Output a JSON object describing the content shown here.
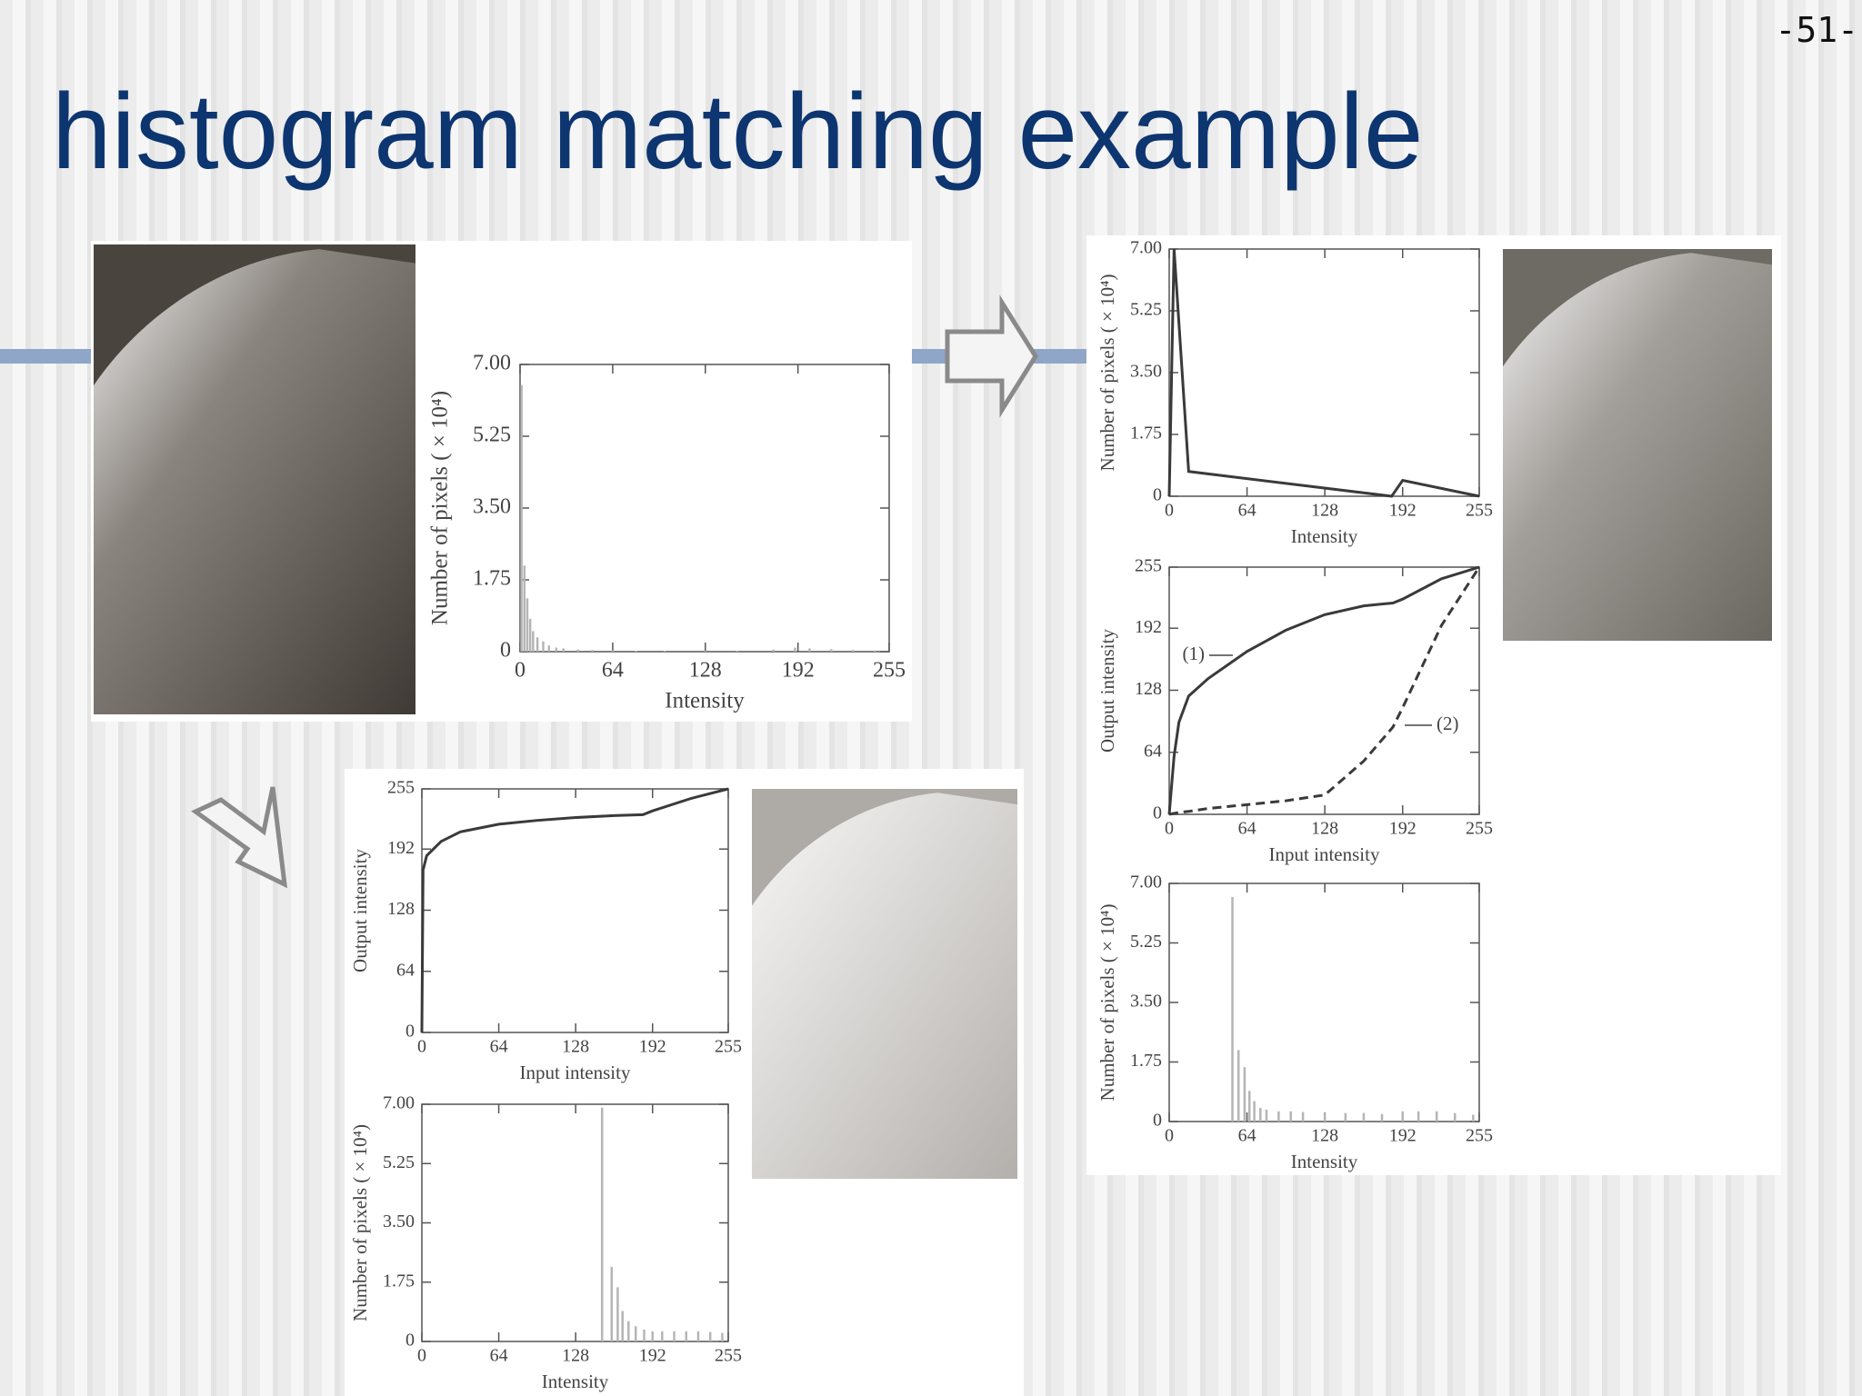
{
  "title": "histogram matching example",
  "page_number": "-51-",
  "chart_data": [
    {
      "type": "bar",
      "x_label": "Intensity",
      "y_label": "Number of pixels ( × 10⁴)",
      "color": "#b5b5b5",
      "x": [
        1,
        3,
        5,
        7,
        9,
        12,
        16,
        20,
        25,
        30,
        40,
        50,
        64,
        80,
        100,
        128,
        150,
        175,
        190,
        200,
        215,
        230,
        245
      ],
      "values": [
        6.5,
        2.1,
        1.3,
        0.8,
        0.5,
        0.35,
        0.25,
        0.15,
        0.1,
        0.08,
        0.05,
        0.04,
        0.03,
        0.02,
        0.02,
        0.02,
        0.02,
        0.05,
        0.1,
        0.08,
        0.06,
        0.04,
        0.03
      ],
      "xlim": [
        0,
        255
      ],
      "xticks": [
        0,
        64,
        128,
        192,
        255
      ],
      "ylim": [
        0,
        7
      ],
      "yticks": [
        0,
        {
          "value": 1.75,
          "label": "1.75"
        },
        {
          "value": 3.5,
          "label": "3.50"
        },
        {
          "value": 5.25,
          "label": "5.25"
        },
        {
          "value": 7,
          "label": "7.00"
        }
      ]
    },
    {
      "type": "line",
      "x_label": "Intensity",
      "y_label": "Number of pixels ( × 10⁴)",
      "color": "#3a3a3a",
      "x": [
        0,
        4,
        16,
        183,
        192,
        255
      ],
      "values": [
        0,
        7,
        0.7,
        0,
        0.45,
        0
      ],
      "xlim": [
        0,
        255
      ],
      "xticks": [
        0,
        64,
        128,
        192,
        255
      ],
      "ylim": [
        0,
        7
      ],
      "yticks": [
        0,
        {
          "value": 1.75,
          "label": "1.75"
        },
        {
          "value": 3.5,
          "label": "3.50"
        },
        {
          "value": 5.25,
          "label": "5.25"
        },
        {
          "value": 7,
          "label": "7.00"
        }
      ]
    },
    {
      "type": "line",
      "x_label": "Input intensity",
      "y_label": "Output intensity",
      "x": [
        0,
        4,
        8,
        16,
        32,
        64,
        96,
        128,
        160,
        184,
        192,
        224,
        255
      ],
      "series": [
        {
          "name": "(1)",
          "color": "#3a3a3a",
          "style": "solid",
          "values": [
            0,
            60,
            95,
            122,
            140,
            168,
            190,
            206,
            215,
            218,
            222,
            243,
            255
          ]
        },
        {
          "name": "(2)",
          "color": "#3a3a3a",
          "style": "dashed",
          "values": [
            0,
            1,
            2,
            3,
            6,
            10,
            14,
            20,
            55,
            90,
            110,
            195,
            255
          ]
        }
      ],
      "xlim": [
        0,
        255
      ],
      "xticks": [
        0,
        64,
        128,
        192,
        255
      ],
      "ylim": [
        0,
        255
      ],
      "yticks": [
        0,
        64,
        128,
        192,
        255
      ]
    },
    {
      "type": "bar",
      "x_label": "Intensity",
      "y_label": "Number of pixels ( × 10⁴)",
      "color": "#b5b5b5",
      "x": [
        52,
        57,
        62,
        66,
        70,
        75,
        80,
        90,
        100,
        110,
        128,
        145,
        160,
        175,
        192,
        205,
        220,
        235,
        250
      ],
      "values": [
        6.6,
        2.1,
        1.6,
        0.9,
        0.6,
        0.4,
        0.35,
        0.3,
        0.3,
        0.28,
        0.25,
        0.25,
        0.25,
        0.22,
        0.3,
        0.3,
        0.3,
        0.25,
        0.2
      ],
      "xlim": [
        0,
        255
      ],
      "xticks": [
        0,
        64,
        128,
        192,
        255
      ],
      "ylim": [
        0,
        7
      ],
      "yticks": [
        0,
        {
          "value": 1.75,
          "label": "1.75"
        },
        {
          "value": 3.5,
          "label": "3.50"
        },
        {
          "value": 5.25,
          "label": "5.25"
        },
        {
          "value": 7,
          "label": "7.00"
        }
      ]
    },
    {
      "type": "line",
      "x_label": "Input intensity",
      "y_label": "Output intensity",
      "color": "#3a3a3a",
      "x": [
        0,
        1,
        4,
        16,
        32,
        64,
        96,
        128,
        160,
        184,
        192,
        224,
        255
      ],
      "values": [
        0,
        170,
        185,
        200,
        210,
        218,
        222,
        225,
        227,
        228,
        232,
        245,
        255
      ],
      "xlim": [
        0,
        255
      ],
      "xticks": [
        0,
        64,
        128,
        192,
        255
      ],
      "ylim": [
        0,
        255
      ],
      "yticks": [
        0,
        64,
        128,
        192,
        255
      ]
    },
    {
      "type": "bar",
      "x_label": "Intensity",
      "y_label": "Number of pixels ( × 10⁴)",
      "color": "#b5b5b5",
      "x": [
        150,
        158,
        163,
        167,
        172,
        178,
        185,
        192,
        200,
        210,
        220,
        230,
        240,
        250
      ],
      "values": [
        6.9,
        2.2,
        1.6,
        0.9,
        0.6,
        0.45,
        0.35,
        0.3,
        0.3,
        0.3,
        0.3,
        0.3,
        0.28,
        0.25
      ],
      "xlim": [
        0,
        255
      ],
      "xticks": [
        0,
        64,
        128,
        192,
        255
      ],
      "ylim": [
        0,
        7
      ],
      "yticks": [
        0,
        {
          "value": 1.75,
          "label": "1.75"
        },
        {
          "value": 3.5,
          "label": "3.50"
        },
        {
          "value": 5.25,
          "label": "5.25"
        },
        {
          "value": 7,
          "label": "7.00"
        }
      ]
    }
  ]
}
